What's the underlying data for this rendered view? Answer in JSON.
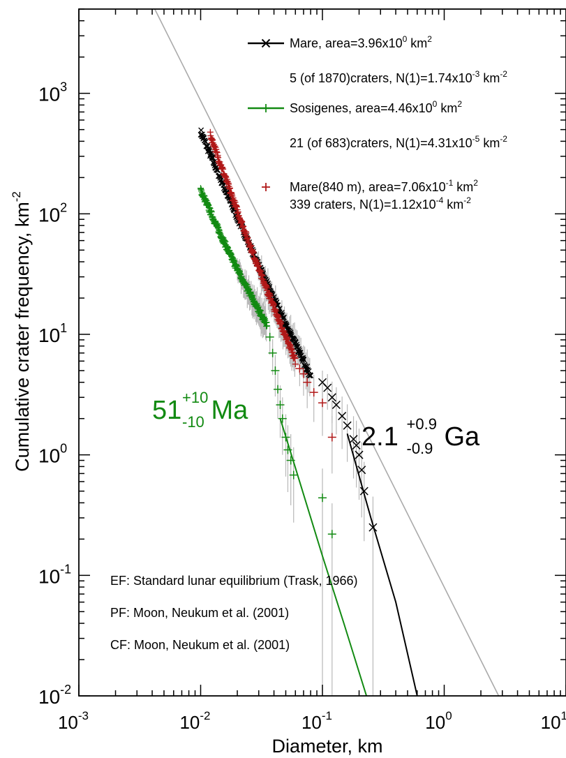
{
  "chart_data": {
    "type": "scatter",
    "xlabel": "Diameter, km",
    "ylabel": "Cumulative crater frequency, km",
    "ylabel_exp": "-2",
    "x_scale": "log",
    "y_scale": "log",
    "xlim": [
      0.001,
      10
    ],
    "ylim": [
      0.01,
      5000
    ],
    "x_ticks": [
      {
        "value": 0.001,
        "mant": "10",
        "exp": "-3"
      },
      {
        "value": 0.01,
        "mant": "10",
        "exp": "-2"
      },
      {
        "value": 0.1,
        "mant": "10",
        "exp": "-1"
      },
      {
        "value": 1,
        "mant": "10",
        "exp": "0"
      },
      {
        "value": 10,
        "mant": "10",
        "exp": "1"
      }
    ],
    "y_ticks": [
      {
        "value": 0.01,
        "mant": "10",
        "exp": "-2"
      },
      {
        "value": 0.1,
        "mant": "10",
        "exp": "-1"
      },
      {
        "value": 1,
        "mant": "10",
        "exp": "0"
      },
      {
        "value": 10,
        "mant": "10",
        "exp": "1"
      },
      {
        "value": 100,
        "mant": "10",
        "exp": "2"
      },
      {
        "value": 1000,
        "mant": "10",
        "exp": "3"
      }
    ],
    "grid": false,
    "legend_position": "top-right",
    "series": [
      {
        "name": "Mare",
        "color": "#000000",
        "marker": "x",
        "dense_start": [
          0.01,
          480
        ],
        "dense_end": [
          0.08,
          4.5
        ],
        "points": [
          [
            0.1,
            4.0
          ],
          [
            0.11,
            3.6
          ],
          [
            0.12,
            3.0
          ],
          [
            0.13,
            2.6
          ],
          [
            0.145,
            2.1
          ],
          [
            0.16,
            1.75
          ],
          [
            0.18,
            1.35
          ],
          [
            0.19,
            1.2
          ],
          [
            0.2,
            1.0
          ],
          [
            0.21,
            0.75
          ],
          [
            0.22,
            0.5
          ],
          [
            0.26,
            0.25
          ]
        ],
        "fit": [
          [
            0.16,
            1.5
          ],
          [
            0.25,
            0.3
          ],
          [
            0.4,
            0.06
          ],
          [
            0.6,
            0.01
          ]
        ]
      },
      {
        "name": "Sosigenes",
        "color": "#128a12",
        "marker": "+",
        "dense_start": [
          0.01,
          158
        ],
        "dense_end": [
          0.035,
          12
        ],
        "points": [
          [
            0.037,
            9.5
          ],
          [
            0.039,
            7
          ],
          [
            0.041,
            5
          ],
          [
            0.043,
            3.5
          ],
          [
            0.045,
            2.6
          ],
          [
            0.047,
            2.0
          ],
          [
            0.05,
            1.4
          ],
          [
            0.052,
            1.1
          ],
          [
            0.055,
            0.9
          ],
          [
            0.058,
            0.68
          ],
          [
            0.1,
            0.44
          ],
          [
            0.12,
            0.22
          ]
        ],
        "fit": [
          [
            0.045,
            2.0
          ],
          [
            0.06,
            0.78
          ],
          [
            0.1,
            0.145
          ],
          [
            0.15,
            0.04
          ],
          [
            0.23,
            0.01
          ]
        ]
      },
      {
        "name": "Mare(840 m)",
        "color": "#b01818",
        "marker": "+",
        "dense_start": [
          0.012,
          450
        ],
        "dense_end": [
          0.06,
          6
        ],
        "points": [
          [
            0.065,
            5.2
          ],
          [
            0.07,
            4.7
          ],
          [
            0.075,
            4.0
          ],
          [
            0.085,
            3.3
          ],
          [
            0.1,
            2.7
          ],
          [
            0.12,
            1.4
          ]
        ],
        "fit": []
      }
    ],
    "equilibrium_line": {
      "color": "#aaaaaa",
      "from": [
        0.0042,
        5000
      ],
      "to": [
        2.8,
        0.01
      ]
    },
    "legend": [
      {
        "name": "Mare",
        "text": "Mare, area=3.96x10",
        "sup": "0",
        "unit": " km",
        "unit_exp": "2",
        "color": "#000000",
        "marker": "x",
        "detail": "5 (of 1870)craters, N(1)=1.74x10",
        "detail_sup": "-3",
        "detail_unit": " km",
        "detail_unit_exp": "-2"
      },
      {
        "name": "Sosigenes",
        "text": "Sosigenes, area=4.46x10",
        "sup": "0",
        "unit": " km",
        "unit_exp": "2",
        "color": "#128a12",
        "marker": "+",
        "detail": "21 (of 683)craters, N(1)=4.31x10",
        "detail_sup": "-5",
        "detail_unit": " km",
        "detail_unit_exp": "-2"
      },
      {
        "name": "Mare(840 m)",
        "text": "Mare(840 m), area=7.06x10",
        "sup": "-1",
        "unit": " km",
        "unit_exp": "2",
        "color": "#b01818",
        "marker": "+",
        "detail": "339 craters, N(1)=1.12x10",
        "detail_sup": "-4",
        "detail_unit": " km",
        "detail_unit_exp": "-2"
      }
    ],
    "annotations": [
      {
        "id": "green-age",
        "base": "51",
        "sup": "+10",
        "sub": "-10",
        "unit": "Ma",
        "color": "#128a12"
      },
      {
        "id": "black-age",
        "base": "2.1",
        "sup": "+0.9",
        "sub": "-0.9",
        "unit": "Ga",
        "color": "#000000"
      }
    ],
    "notes": [
      "EF: Standard lunar equilibrium (Trask, 1966)",
      "PF: Moon, Neukum et al. (2001)",
      "CF: Moon, Neukum et al. (2001)"
    ]
  }
}
